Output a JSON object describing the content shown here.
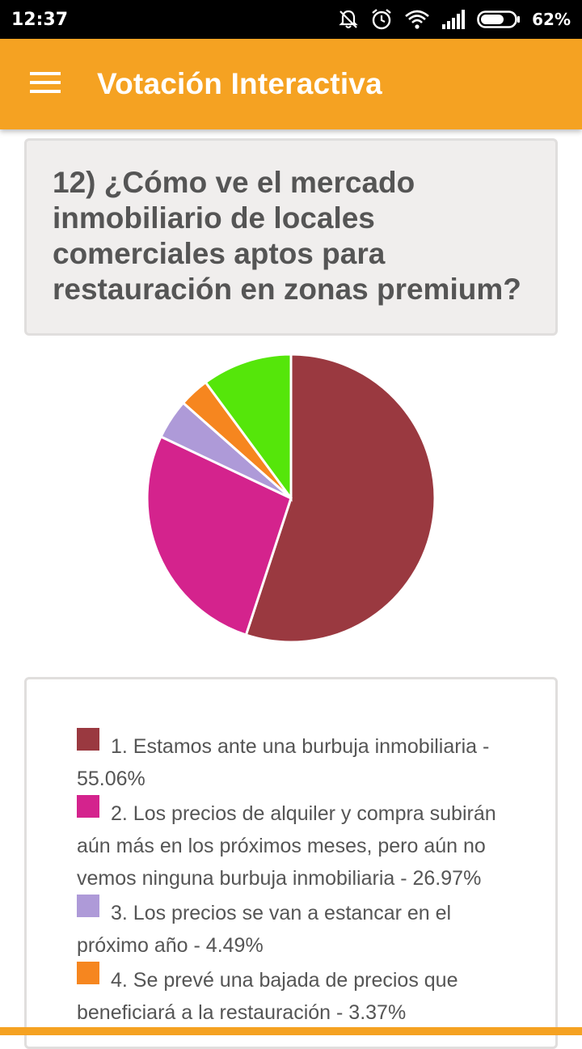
{
  "status_bar": {
    "time": "12:37",
    "battery": "62%",
    "icons": [
      "notifications-off-icon",
      "alarm-icon",
      "wifi-icon",
      "signal-icon",
      "battery-icon"
    ]
  },
  "app_bar": {
    "title": "Votación Interactiva",
    "menu_icon": "hamburger-menu-icon",
    "color": "#f5a222"
  },
  "question": {
    "text": "12) ¿Cómo ve el mercado inmobiliario de locales comerciales aptos para restauración en zonas premium?"
  },
  "chart_data": {
    "type": "pie",
    "slices": [
      {
        "label": "1. Estamos ante una burbuja inmobiliaria - 55.06%",
        "value": 55.06,
        "color": "#9a3940"
      },
      {
        "label": "2. Los precios de alquiler y compra subirán aún más en los próximos meses, pero aún no vemos ninguna burbuja inmobiliaria - 26.97%",
        "value": 26.97,
        "color": "#d4238d"
      },
      {
        "label": "3. Los precios se van a estancar en el próximo año - 4.49%",
        "value": 4.49,
        "color": "#ae9ad8"
      },
      {
        "label": "4. Se prevé una bajada de precios que beneficiará a la restauración - 3.37%",
        "value": 3.37,
        "color": "#f6861f"
      },
      {
        "label": "",
        "value": 10.11,
        "color": "#55e60a"
      }
    ]
  },
  "legend": {
    "items": [
      {
        "text": "1. Estamos ante una burbuja inmobiliaria - 55.06%",
        "color": "#9a3940"
      },
      {
        "text": "2. Los precios de alquiler y compra subirán aún más en los próximos meses, pero aún no vemos ninguna burbuja inmobiliaria - 26.97%",
        "color": "#d4238d"
      },
      {
        "text": "3. Los precios se van a estancar en el próximo año - 4.49%",
        "color": "#ae9ad8"
      },
      {
        "text": "4. Se prevé una bajada de precios que beneficiará a la restauración - 3.37%",
        "color": "#f6861f"
      }
    ]
  }
}
